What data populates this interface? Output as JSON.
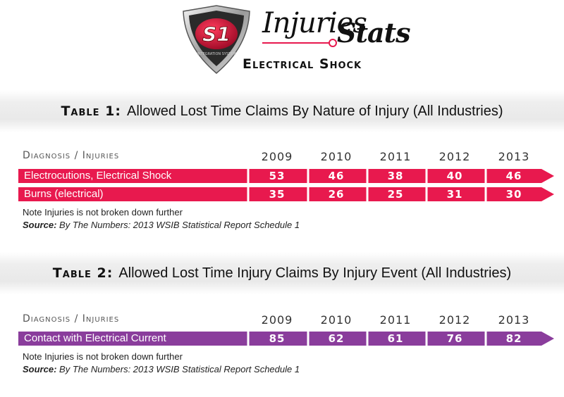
{
  "header": {
    "logo_text": "S1",
    "logo_sub": "INTEGRATION SYSTEM",
    "brand_word1": "Injuries",
    "brand_word2": "Stats",
    "subtitle": "Electrical Shock"
  },
  "colors": {
    "table1_bar": "#e8194e",
    "table2_bar": "#8a3d9c",
    "accent": "#e8194e"
  },
  "chart_data": [
    {
      "type": "table",
      "table_label": "Table 1:",
      "title": "Allowed Lost Time Claims By Nature of Injury (All Industries)",
      "column_header": "Diagnosis / Injuries",
      "categories": [
        "2009",
        "2010",
        "2011",
        "2012",
        "2013"
      ],
      "series": [
        {
          "name": "Electrocutions, Electrical Shock",
          "values": [
            53,
            46,
            38,
            40,
            46
          ]
        },
        {
          "name": "Burns (electrical)",
          "values": [
            35,
            26,
            25,
            31,
            30
          ]
        }
      ],
      "note": "Note Injuries is not broken down further",
      "source_label": "Source:",
      "source_text": "By The Numbers: 2013 WSIB Statistical Report Schedule 1"
    },
    {
      "type": "table",
      "table_label": "Table 2:",
      "title": "Allowed Lost Time Injury Claims By Injury Event (All Industries)",
      "column_header": "Diagnosis / Injuries",
      "categories": [
        "2009",
        "2010",
        "2011",
        "2012",
        "2013"
      ],
      "series": [
        {
          "name": "Contact with Electrical Current",
          "values": [
            85,
            62,
            61,
            76,
            82
          ]
        }
      ],
      "note": "Note Injuries is not broken down further",
      "source_label": "Source:",
      "source_text": "By The Numbers: 2013 WSIB Statistical Report Schedule 1"
    }
  ]
}
